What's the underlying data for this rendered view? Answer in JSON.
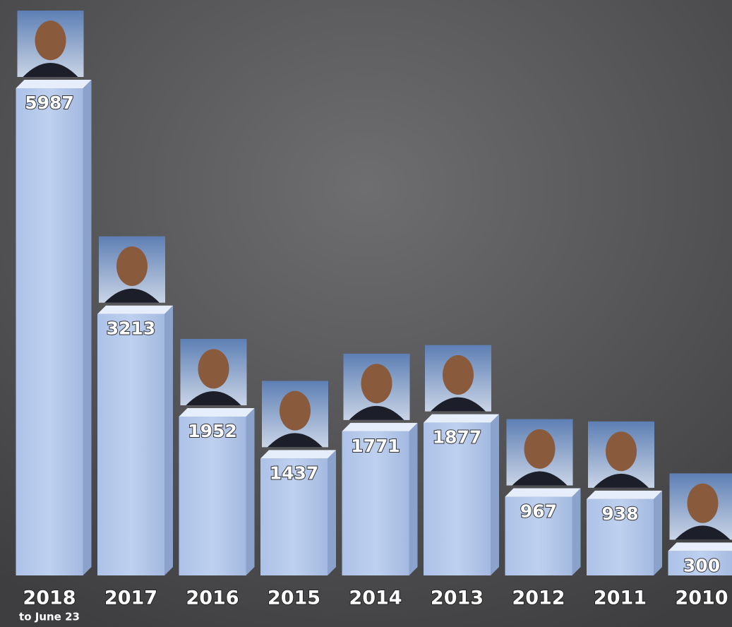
{
  "chart_data": {
    "type": "bar",
    "categories": [
      "2018",
      "2017",
      "2016",
      "2015",
      "2014",
      "2013",
      "2012",
      "2011",
      "2010"
    ],
    "values": [
      5987,
      3213,
      1952,
      1437,
      1771,
      1877,
      967,
      938,
      300
    ],
    "annotation": "to June 23",
    "color": "#b4c8ea"
  }
}
